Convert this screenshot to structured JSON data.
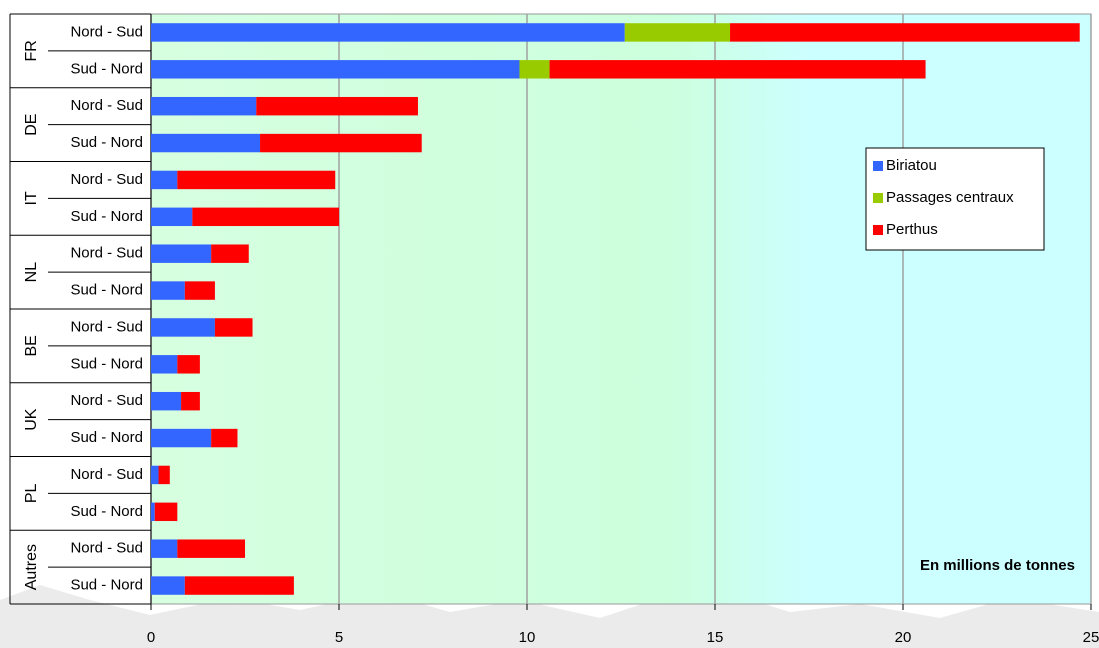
{
  "chart_data": {
    "type": "stacked-barh",
    "groups": [
      {
        "name": "FR",
        "categories": [
          "Nord - Sud",
          "Sud - Nord"
        ]
      },
      {
        "name": "DE",
        "categories": [
          "Nord - Sud",
          "Sud - Nord"
        ]
      },
      {
        "name": "IT",
        "categories": [
          "Nord - Sud",
          "Sud - Nord"
        ]
      },
      {
        "name": "NL",
        "categories": [
          "Nord - Sud",
          "Sud - Nord"
        ]
      },
      {
        "name": "BE",
        "categories": [
          "Nord - Sud",
          "Sud - Nord"
        ]
      },
      {
        "name": "UK",
        "categories": [
          "Nord - Sud",
          "Sud - Nord"
        ]
      },
      {
        "name": "PL",
        "categories": [
          "Nord - Sud",
          "Sud - Nord"
        ]
      },
      {
        "name": "Autres",
        "categories": [
          "Nord - Sud",
          "Sud - Nord"
        ]
      }
    ],
    "series": [
      {
        "name": "Biriatou",
        "color": "#3366ff",
        "values": [
          12.6,
          9.8,
          2.8,
          2.9,
          0.7,
          1.1,
          1.6,
          0.9,
          1.7,
          0.7,
          0.8,
          1.6,
          0.2,
          0.1,
          0.7,
          0.9
        ]
      },
      {
        "name": "Passages centraux",
        "color": "#99cc00",
        "values": [
          2.8,
          0.8,
          0,
          0,
          0,
          0,
          0,
          0,
          0,
          0,
          0,
          0,
          0,
          0,
          0,
          0
        ]
      },
      {
        "name": "Perthus",
        "color": "#ff0000",
        "values": [
          9.3,
          10.0,
          4.3,
          4.3,
          4.2,
          3.9,
          1.0,
          0.8,
          1.0,
          0.6,
          0.5,
          0.7,
          0.3,
          0.6,
          1.8,
          2.9
        ]
      }
    ],
    "xlim": [
      0,
      25
    ],
    "xticks": [
      0,
      5,
      10,
      15,
      20,
      25
    ],
    "grid": true,
    "legend": "upper right",
    "annotation": "En millions de tonnes"
  }
}
